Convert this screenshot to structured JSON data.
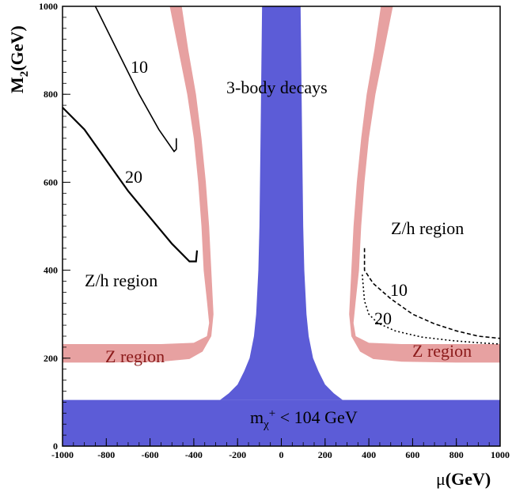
{
  "chart_data": {
    "type": "line",
    "xlabel": "μ(GeV)",
    "ylabel": "M2(GeV)",
    "xlim": [
      -1000,
      1000
    ],
    "ylim": [
      0,
      1000
    ],
    "x_ticks": [
      "-1000",
      "-800",
      "-600",
      "-400",
      "-200",
      "0",
      "200",
      "400",
      "600",
      "800",
      "1000"
    ],
    "y_ticks": [
      "0",
      "200",
      "400",
      "600",
      "800",
      "1000"
    ],
    "grid": false,
    "regions": [
      {
        "label": "Z region",
        "color": "#e8a0a0",
        "kind": "red-band-left"
      },
      {
        "label": "Z region",
        "color": "#e8a0a0",
        "kind": "red-band-right"
      },
      {
        "label": "3-body decays",
        "color": "#4a4ad0",
        "kind": "blue-central"
      },
      {
        "label": "m_χ+ < 104 GeV",
        "color": "#4a4ad0",
        "kind": "blue-bottom"
      }
    ],
    "series": [
      {
        "name": "10",
        "side": "left",
        "points": [
          [
            -850,
            1000
          ],
          [
            -750,
            900
          ],
          [
            -650,
            800
          ],
          [
            -560,
            720
          ],
          [
            -490,
            670
          ],
          [
            -480,
            675
          ],
          [
            -480,
            700
          ]
        ]
      },
      {
        "name": "20",
        "side": "left",
        "points": [
          [
            -1000,
            770
          ],
          [
            -900,
            720
          ],
          [
            -800,
            650
          ],
          [
            -700,
            580
          ],
          [
            -600,
            520
          ],
          [
            -500,
            460
          ],
          [
            -420,
            420
          ],
          [
            -390,
            420
          ],
          [
            -385,
            445
          ]
        ]
      },
      {
        "name": "10",
        "side": "right",
        "points": [
          [
            380,
            450
          ],
          [
            380,
            400
          ],
          [
            420,
            370
          ],
          [
            500,
            335
          ],
          [
            600,
            300
          ],
          [
            700,
            278
          ],
          [
            800,
            262
          ],
          [
            900,
            250
          ],
          [
            1000,
            245
          ]
        ]
      },
      {
        "name": "20",
        "side": "right",
        "points": [
          [
            370,
            390
          ],
          [
            380,
            330
          ],
          [
            400,
            300
          ],
          [
            440,
            280
          ],
          [
            520,
            262
          ],
          [
            640,
            248
          ],
          [
            780,
            240
          ],
          [
            900,
            235
          ],
          [
            1000,
            232
          ]
        ]
      }
    ]
  },
  "annotations": {
    "three_body": "3-body decays",
    "zh_left": "Z/h region",
    "zh_right": "Z/h region",
    "z_left": "Z region",
    "z_right": "Z region",
    "bottom_pre": "m",
    "bottom_sub": "χ",
    "bottom_sup": "+",
    "bottom_post": " < 104 GeV",
    "left_10": "10",
    "left_20": "20",
    "right_10": "10",
    "right_20": "20"
  },
  "axes": {
    "x_label_greek": "μ",
    "x_label_unit": "(GeV)",
    "y_label_main": "M",
    "y_label_sub": "2",
    "y_label_unit": "(GeV)"
  },
  "colors": {
    "red_band": "#e7a1a1",
    "blue": "#4e4ed4",
    "axis": "#000000"
  }
}
